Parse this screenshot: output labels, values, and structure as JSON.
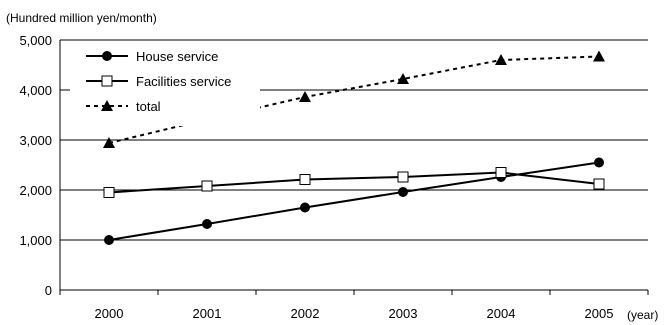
{
  "chart_data": {
    "type": "line",
    "y_unit_label": "(Hundred million yen/month)",
    "x_unit_label": "(year)",
    "categories": [
      "2000",
      "2001",
      "2002",
      "2003",
      "2004",
      "2005"
    ],
    "ylim": [
      0,
      5000
    ],
    "yticks": [
      0,
      1000,
      2000,
      3000,
      4000,
      5000
    ],
    "ytick_labels": [
      "0",
      "1,000",
      "2,000",
      "3,000",
      "4,000",
      "5,000"
    ],
    "grid": "horizontal",
    "legend_position": "top-left",
    "series": [
      {
        "name": "House service",
        "marker": "filled-circle",
        "line": "solid",
        "values": [
          1000,
          1320,
          1650,
          1960,
          2260,
          2550
        ]
      },
      {
        "name": "Facilities service",
        "marker": "open-square",
        "line": "solid",
        "values": [
          1950,
          2080,
          2210,
          2260,
          2350,
          2120
        ]
      },
      {
        "name": "total",
        "marker": "filled-triangle",
        "line": "dotted",
        "values": [
          2940,
          3410,
          3860,
          4220,
          4600,
          4670
        ]
      }
    ]
  }
}
